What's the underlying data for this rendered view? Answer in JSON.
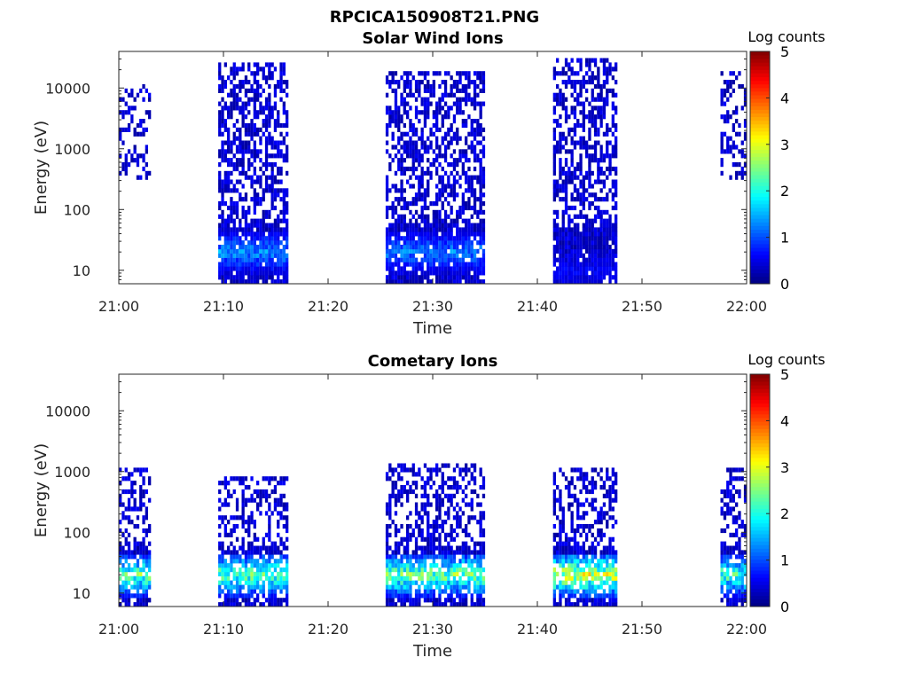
{
  "figure_title": "RPCICA150908T21.PNG",
  "colors": {
    "colormap": "jet",
    "background": "#ffffff",
    "axes": "#262626"
  },
  "chart_data": [
    {
      "type": "heatmap",
      "title": "Solar Wind Ions",
      "xlabel": "Time",
      "ylabel": "Energy (eV)",
      "x_ticks": [
        "21:00",
        "21:10",
        "21:20",
        "21:30",
        "21:40",
        "21:50",
        "22:00"
      ],
      "xlim": [
        "21:00",
        "22:00"
      ],
      "y_scale": "log",
      "y_ticks": [
        "10",
        "100",
        "1000",
        "10000"
      ],
      "ylim": [
        6,
        40000
      ],
      "colorbar": {
        "label": "Log counts",
        "ticks": [
          "0",
          "1",
          "2",
          "3",
          "4",
          "5"
        ],
        "range": [
          0,
          5
        ]
      },
      "bursts": [
        {
          "start": "21:00:00",
          "end": "21:03:00",
          "emin": 300,
          "emax": 12000,
          "peak_energy": null,
          "peak_log_counts": 0.6,
          "density": 0.35
        },
        {
          "start": "21:09:30",
          "end": "21:16:00",
          "emin": 6,
          "emax": 25000,
          "peak_energy": 20,
          "peak_log_counts": 1.7,
          "density": 0.55
        },
        {
          "start": "21:25:30",
          "end": "21:35:00",
          "emin": 6,
          "emax": 20000,
          "peak_energy": 20,
          "peak_log_counts": 1.6,
          "density": 0.55
        },
        {
          "start": "21:41:30",
          "end": "21:47:30",
          "emin": 6,
          "emax": 30000,
          "peak_energy": 10,
          "peak_log_counts": 0.8,
          "density": 0.55
        },
        {
          "start": "21:57:30",
          "end": "22:00:00",
          "emin": 300,
          "emax": 20000,
          "peak_energy": null,
          "peak_log_counts": 0.6,
          "density": 0.4
        }
      ]
    },
    {
      "type": "heatmap",
      "title": "Cometary Ions",
      "xlabel": "Time",
      "ylabel": "Energy (eV)",
      "x_ticks": [
        "21:00",
        "21:10",
        "21:20",
        "21:30",
        "21:40",
        "21:50",
        "22:00"
      ],
      "xlim": [
        "21:00",
        "22:00"
      ],
      "y_scale": "log",
      "y_ticks": [
        "10",
        "100",
        "1000",
        "10000"
      ],
      "ylim": [
        6,
        40000
      ],
      "colorbar": {
        "label": "Log counts",
        "ticks": [
          "0",
          "1",
          "2",
          "3",
          "4",
          "5"
        ],
        "range": [
          0,
          5
        ]
      },
      "bursts": [
        {
          "start": "21:00:00",
          "end": "21:03:00",
          "emin": 6,
          "emax": 1200,
          "peak_energy": 20,
          "peak_log_counts": 3.0,
          "density": 0.45
        },
        {
          "start": "21:09:30",
          "end": "21:16:00",
          "emin": 6,
          "emax": 900,
          "peak_energy": 20,
          "peak_log_counts": 3.0,
          "density": 0.45
        },
        {
          "start": "21:25:30",
          "end": "21:35:00",
          "emin": 6,
          "emax": 1300,
          "peak_energy": 20,
          "peak_log_counts": 3.1,
          "density": 0.45
        },
        {
          "start": "21:41:30",
          "end": "21:47:30",
          "emin": 6,
          "emax": 1200,
          "peak_energy": 20,
          "peak_log_counts": 3.6,
          "density": 0.45
        },
        {
          "start": "21:57:30",
          "end": "22:00:00",
          "emin": 6,
          "emax": 1200,
          "peak_energy": 20,
          "peak_log_counts": 2.8,
          "density": 0.45
        }
      ]
    }
  ]
}
